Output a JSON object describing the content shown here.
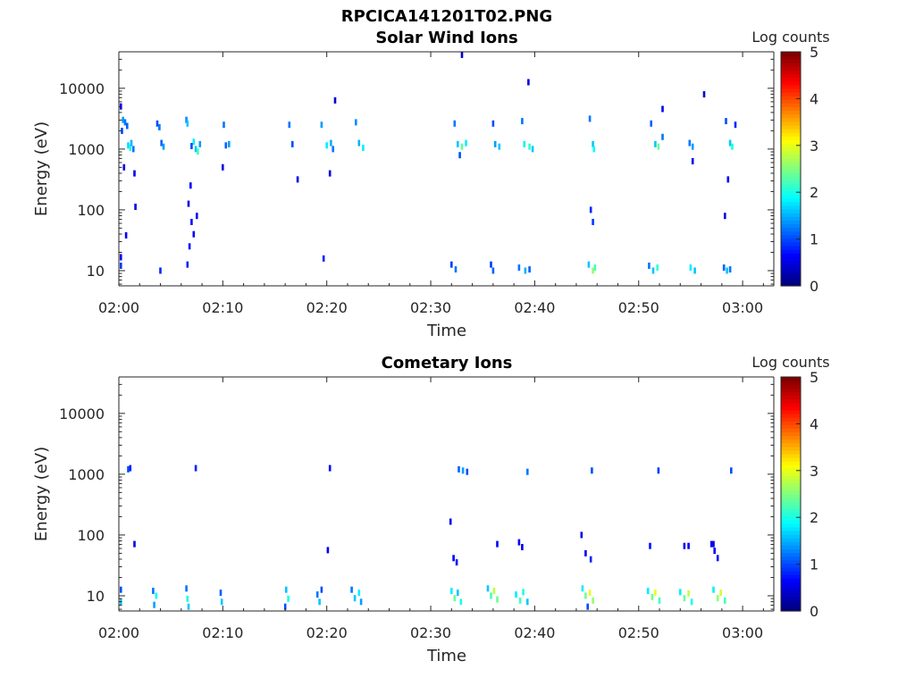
{
  "figure": {
    "title": "RPCICA141201T02.PNG"
  },
  "chart_data": [
    {
      "type": "heatmap",
      "title": "Solar Wind Ions",
      "xlabel": "Time",
      "ylabel": "Energy (eV)",
      "x_ticks": [
        "02:00",
        "02:10",
        "02:20",
        "02:30",
        "02:40",
        "02:50",
        "03:00"
      ],
      "xlim_minutes": [
        0,
        63
      ],
      "ylim_log10": [
        0.75,
        4.6
      ],
      "y_scale": "log",
      "y_ticks": [
        {
          "value": 10,
          "label": "10"
        },
        {
          "value": 100,
          "label": "100"
        },
        {
          "value": 1000,
          "label": "1000"
        },
        {
          "value": 10000,
          "label": "10000"
        }
      ],
      "colorbar": {
        "label": "Log counts",
        "range": [
          0,
          5
        ],
        "ticks": [
          "0",
          "1",
          "2",
          "3",
          "4",
          "5"
        ],
        "colormap": "jet"
      },
      "cells": [
        [
          0.3,
          3.3,
          1.0
        ],
        [
          0.4,
          3.48,
          1.4
        ],
        [
          0.6,
          3.44,
          1.2
        ],
        [
          0.8,
          3.38,
          1.1
        ],
        [
          0.9,
          3.06,
          1.7
        ],
        [
          1.1,
          3.02,
          2.0
        ],
        [
          1.2,
          3.1,
          1.5
        ],
        [
          1.4,
          3.0,
          1.2
        ],
        [
          0.2,
          3.7,
          0.6
        ],
        [
          0.5,
          2.7,
          0.5
        ],
        [
          1.5,
          2.6,
          0.6
        ],
        [
          1.6,
          2.05,
          0.5
        ],
        [
          0.2,
          1.22,
          0.6
        ],
        [
          0.2,
          1.08,
          0.9
        ],
        [
          0.7,
          1.58,
          0.6
        ],
        [
          3.7,
          3.42,
          1.0
        ],
        [
          3.9,
          3.36,
          1.2
        ],
        [
          4.1,
          3.1,
          1.1
        ],
        [
          4.3,
          3.04,
          1.4
        ],
        [
          4.0,
          1.0,
          0.8
        ],
        [
          6.5,
          3.48,
          1.3
        ],
        [
          6.6,
          3.42,
          1.6
        ],
        [
          7.2,
          3.12,
          1.8
        ],
        [
          7.4,
          3.0,
          1.6
        ],
        [
          7.6,
          2.96,
          2.2
        ],
        [
          7.8,
          3.08,
          1.4
        ],
        [
          7.0,
          3.05,
          1.0
        ],
        [
          6.9,
          2.4,
          0.6
        ],
        [
          6.7,
          2.1,
          0.5
        ],
        [
          7.0,
          1.8,
          0.7
        ],
        [
          7.2,
          1.6,
          0.6
        ],
        [
          6.8,
          1.4,
          0.7
        ],
        [
          6.6,
          1.1,
          0.8
        ],
        [
          7.5,
          1.9,
          0.6
        ],
        [
          10.1,
          3.4,
          1.2
        ],
        [
          10.3,
          3.06,
          1.1
        ],
        [
          10.6,
          3.08,
          1.4
        ],
        [
          10.0,
          2.7,
          0.5
        ],
        [
          16.4,
          3.4,
          1.2
        ],
        [
          16.7,
          3.08,
          1.0
        ],
        [
          17.2,
          2.5,
          0.6
        ],
        [
          19.5,
          3.4,
          1.4
        ],
        [
          20.0,
          3.06,
          1.8
        ],
        [
          20.4,
          3.1,
          1.5
        ],
        [
          20.6,
          3.0,
          1.2
        ],
        [
          19.7,
          1.2,
          0.8
        ],
        [
          20.3,
          2.6,
          0.5
        ],
        [
          20.8,
          3.8,
          0.4
        ],
        [
          22.8,
          3.44,
          1.3
        ],
        [
          23.1,
          3.1,
          1.5
        ],
        [
          23.5,
          3.02,
          1.8
        ],
        [
          32.3,
          3.42,
          1.2
        ],
        [
          32.6,
          3.08,
          1.6
        ],
        [
          33.0,
          3.04,
          2.3
        ],
        [
          33.4,
          3.1,
          1.8
        ],
        [
          32.8,
          2.9,
          1.0
        ],
        [
          32.0,
          1.1,
          0.9
        ],
        [
          32.4,
          1.02,
          1.2
        ],
        [
          36.0,
          3.42,
          1.0
        ],
        [
          36.2,
          3.08,
          1.4
        ],
        [
          36.6,
          3.04,
          1.6
        ],
        [
          35.8,
          1.1,
          0.9
        ],
        [
          36.0,
          1.0,
          1.1
        ],
        [
          38.8,
          3.46,
          1.2
        ],
        [
          39.0,
          3.08,
          1.8
        ],
        [
          39.5,
          3.04,
          2.1
        ],
        [
          39.8,
          3.0,
          1.6
        ],
        [
          38.5,
          1.05,
          1.2
        ],
        [
          39.1,
          1.0,
          1.5
        ],
        [
          39.5,
          1.02,
          1.1
        ],
        [
          39.4,
          4.1,
          0.5
        ],
        [
          45.3,
          3.5,
          1.2
        ],
        [
          45.6,
          3.08,
          1.6
        ],
        [
          45.7,
          3.0,
          1.9
        ],
        [
          45.4,
          2.0,
          0.8
        ],
        [
          45.6,
          1.8,
          0.9
        ],
        [
          45.2,
          1.1,
          1.6
        ],
        [
          45.6,
          1.0,
          2.6
        ],
        [
          45.8,
          1.05,
          2.2
        ],
        [
          51.2,
          3.42,
          1.1
        ],
        [
          51.6,
          3.08,
          1.6
        ],
        [
          51.9,
          3.04,
          2.4
        ],
        [
          52.3,
          3.2,
          1.2
        ],
        [
          52.3,
          3.66,
          0.6
        ],
        [
          51.0,
          1.08,
          1.2
        ],
        [
          51.4,
          1.0,
          1.6
        ],
        [
          51.8,
          1.05,
          2.1
        ],
        [
          54.9,
          3.1,
          1.2
        ],
        [
          55.2,
          3.04,
          1.4
        ],
        [
          55.0,
          1.05,
          1.8
        ],
        [
          55.4,
          1.0,
          1.6
        ],
        [
          55.2,
          2.8,
          0.5
        ],
        [
          56.3,
          3.9,
          0.4
        ],
        [
          58.4,
          3.46,
          1.0
        ],
        [
          58.8,
          3.1,
          1.6
        ],
        [
          59.0,
          3.04,
          2.0
        ],
        [
          59.3,
          3.4,
          0.8
        ],
        [
          58.2,
          1.05,
          1.1
        ],
        [
          58.5,
          1.0,
          1.6
        ],
        [
          58.8,
          1.02,
          1.2
        ],
        [
          58.3,
          1.9,
          0.5
        ],
        [
          58.6,
          2.5,
          0.6
        ],
        [
          33.0,
          4.55,
          0.4
        ]
      ]
    },
    {
      "type": "heatmap",
      "title": "Cometary Ions",
      "xlabel": "Time",
      "ylabel": "Energy (eV)",
      "x_ticks": [
        "02:00",
        "02:10",
        "02:20",
        "02:30",
        "02:40",
        "02:50",
        "03:00"
      ],
      "xlim_minutes": [
        0,
        63
      ],
      "ylim_log10": [
        0.75,
        4.6
      ],
      "y_scale": "log",
      "y_ticks": [
        {
          "value": 10,
          "label": "10"
        },
        {
          "value": 100,
          "label": "100"
        },
        {
          "value": 1000,
          "label": "1000"
        },
        {
          "value": 10000,
          "label": "10000"
        }
      ],
      "colorbar": {
        "label": "Log counts",
        "range": [
          0,
          5
        ],
        "ticks": [
          "0",
          "1",
          "2",
          "3",
          "4",
          "5"
        ],
        "colormap": "jet"
      },
      "cells": [
        [
          0.9,
          3.08,
          1.0
        ],
        [
          1.1,
          3.1,
          0.8
        ],
        [
          7.4,
          3.1,
          0.8
        ],
        [
          20.3,
          3.1,
          0.6
        ],
        [
          32.7,
          3.08,
          1.1
        ],
        [
          33.1,
          3.06,
          1.4
        ],
        [
          33.5,
          3.04,
          1.0
        ],
        [
          39.3,
          3.04,
          1.2
        ],
        [
          45.5,
          3.06,
          1.0
        ],
        [
          51.9,
          3.06,
          0.9
        ],
        [
          58.9,
          3.06,
          1.0
        ],
        [
          1.5,
          1.85,
          0.5
        ],
        [
          31.9,
          2.22,
          0.5
        ],
        [
          32.2,
          1.62,
          0.6
        ],
        [
          32.5,
          1.55,
          0.7
        ],
        [
          36.4,
          1.85,
          0.6
        ],
        [
          38.5,
          1.88,
          0.6
        ],
        [
          38.8,
          1.8,
          0.5
        ],
        [
          44.5,
          2.0,
          0.5
        ],
        [
          44.9,
          1.7,
          0.6
        ],
        [
          45.4,
          1.6,
          0.8
        ],
        [
          51.1,
          1.82,
          0.7
        ],
        [
          54.4,
          1.82,
          0.5
        ],
        [
          54.8,
          1.82,
          0.5
        ],
        [
          57.0,
          1.85,
          0.5
        ],
        [
          57.3,
          1.74,
          0.6
        ],
        [
          57.6,
          1.62,
          0.7
        ],
        [
          57.2,
          1.85,
          0.6
        ],
        [
          20.1,
          1.75,
          0.5
        ],
        [
          0.2,
          1.1,
          1.0
        ],
        [
          0.2,
          0.9,
          1.6
        ],
        [
          3.3,
          1.08,
          1.2
        ],
        [
          3.6,
          1.0,
          1.9
        ],
        [
          3.4,
          0.85,
          1.4
        ],
        [
          6.5,
          1.12,
          1.2
        ],
        [
          6.6,
          0.95,
          2.0
        ],
        [
          6.7,
          0.82,
          1.6
        ],
        [
          9.8,
          1.05,
          1.1
        ],
        [
          9.9,
          0.9,
          1.6
        ],
        [
          16.1,
          1.1,
          1.6
        ],
        [
          16.3,
          0.95,
          2.0
        ],
        [
          16.0,
          0.82,
          1.0
        ],
        [
          19.1,
          1.02,
          1.2
        ],
        [
          19.3,
          0.9,
          1.6
        ],
        [
          19.5,
          1.1,
          1.0
        ],
        [
          22.4,
          1.1,
          1.2
        ],
        [
          22.7,
          0.96,
          1.6
        ],
        [
          23.1,
          1.05,
          1.8
        ],
        [
          23.3,
          0.9,
          1.4
        ],
        [
          32.0,
          1.08,
          1.8
        ],
        [
          32.3,
          0.96,
          2.4
        ],
        [
          32.6,
          1.05,
          1.6
        ],
        [
          32.9,
          0.9,
          2.0
        ],
        [
          35.5,
          1.12,
          1.6
        ],
        [
          35.8,
          1.0,
          2.2
        ],
        [
          36.1,
          1.08,
          2.8
        ],
        [
          36.4,
          0.94,
          2.4
        ],
        [
          38.2,
          1.02,
          1.8
        ],
        [
          38.6,
          0.92,
          2.2
        ],
        [
          38.9,
          1.06,
          2.0
        ],
        [
          39.3,
          0.9,
          1.6
        ],
        [
          44.6,
          1.12,
          1.8
        ],
        [
          44.9,
          1.0,
          2.4
        ],
        [
          45.3,
          1.05,
          3.0
        ],
        [
          45.6,
          0.92,
          2.6
        ],
        [
          45.1,
          0.82,
          1.0
        ],
        [
          50.9,
          1.08,
          1.8
        ],
        [
          51.3,
          0.98,
          2.4
        ],
        [
          51.6,
          1.05,
          3.0
        ],
        [
          52.0,
          0.92,
          2.2
        ],
        [
          54.0,
          1.06,
          1.8
        ],
        [
          54.4,
          0.96,
          2.4
        ],
        [
          54.8,
          1.04,
          2.8
        ],
        [
          55.1,
          0.9,
          2.0
        ],
        [
          57.2,
          1.1,
          1.8
        ],
        [
          57.6,
          0.96,
          2.6
        ],
        [
          57.9,
          1.05,
          2.9
        ],
        [
          58.3,
          0.92,
          2.2
        ]
      ]
    }
  ]
}
